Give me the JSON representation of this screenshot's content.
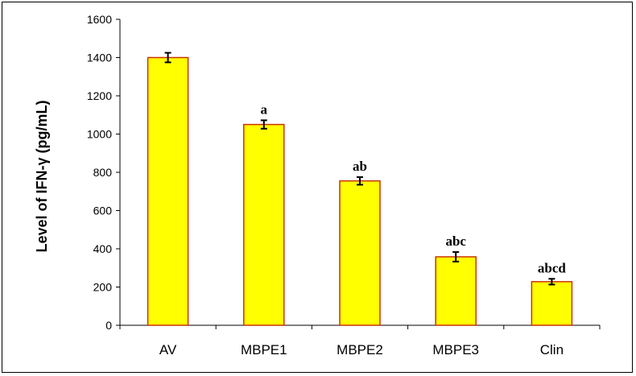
{
  "chart_data": {
    "type": "bar",
    "title": "",
    "xlabel": "",
    "ylabel": "Level of IFN-γ (pg/mL)",
    "categories": [
      "AV",
      "MBPE1",
      "MBPE2",
      "MBPE3",
      "Clin"
    ],
    "values": [
      1400,
      1050,
      755,
      358,
      228
    ],
    "errors": [
      25,
      22,
      20,
      25,
      15
    ],
    "annotations": [
      "",
      "a",
      "ab",
      "abc",
      "abcd"
    ],
    "ylim": [
      0,
      1600
    ],
    "yticks": [
      0,
      200,
      400,
      600,
      800,
      1000,
      1200,
      1400,
      1600
    ],
    "grid": false,
    "legend": "none",
    "colors": {
      "bar_fill": "#ffff00",
      "bar_edge": "#cc3300",
      "axis": "#000000"
    }
  }
}
